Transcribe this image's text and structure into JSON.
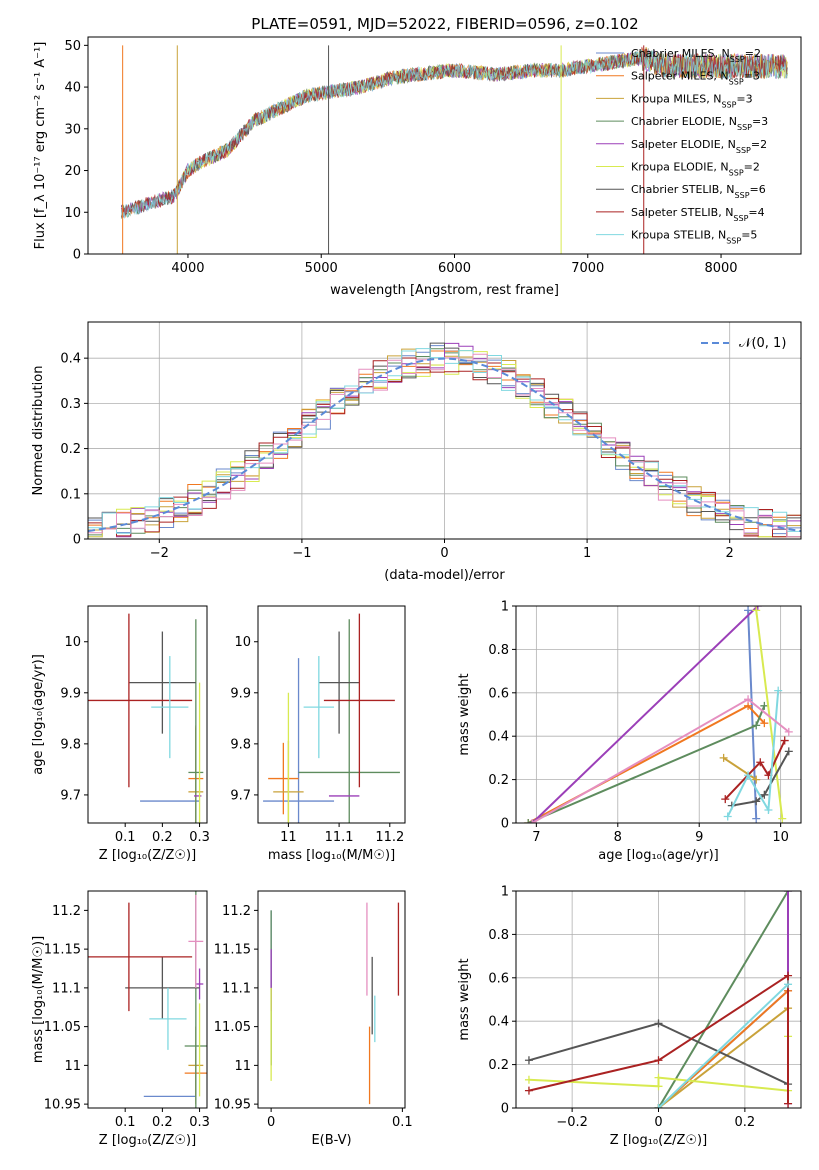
{
  "figure_title": "PLATE=0591, MJD=52022, FIBERID=0596, z=0.102",
  "series_colors": [
    "#6a89cc",
    "#f07820",
    "#c9a23a",
    "#5e8c5e",
    "#9b3fb8",
    "#d8ea50",
    "#555555",
    "#aa2222",
    "#80d8e0"
  ],
  "chart_data": [
    {
      "type": "line",
      "title": "PLATE=0591, MJD=52022, FIBERID=0596, z=0.102",
      "xlabel": "wavelength [Angstrom, rest frame]",
      "ylabel": "Flux [f_λ 10⁻¹⁷ erg cm⁻² s⁻¹ A⁻¹]",
      "xlim": [
        3250,
        8600
      ],
      "ylim": [
        0,
        52
      ],
      "xticks": [
        4000,
        5000,
        6000,
        7000,
        8000
      ],
      "yticks": [
        0,
        10,
        20,
        30,
        40,
        50
      ],
      "grid": false,
      "legend_position": "top-right",
      "series": [
        {
          "name": "Chabrier MILES, N_SSP=2"
        },
        {
          "name": "Salpeter MILES, N_SSP=3"
        },
        {
          "name": "Kroupa MILES, N_SSP=3"
        },
        {
          "name": "Chabrier ELODIE, N_SSP=3"
        },
        {
          "name": "Salpeter ELODIE, N_SSP=2"
        },
        {
          "name": "Kroupa ELODIE, N_SSP=2"
        },
        {
          "name": "Chabrier STELIB, N_SSP=6"
        },
        {
          "name": "Salpeter STELIB, N_SSP=4"
        },
        {
          "name": "Kroupa STELIB, N_SSP=5"
        }
      ],
      "continuum": {
        "x": [
          3500,
          3700,
          3900,
          4000,
          4100,
          4300,
          4500,
          4700,
          4900,
          5100,
          5300,
          5500,
          5700,
          6000,
          6300,
          6600,
          6800,
          7000,
          7200,
          7400,
          7600,
          7800,
          8000,
          8200,
          8500
        ],
        "y": [
          10,
          12,
          14,
          20,
          22,
          25,
          32,
          35,
          38,
          39,
          40,
          42,
          43,
          44,
          43,
          44,
          44,
          45,
          46,
          47,
          45,
          45,
          45,
          45,
          45
        ]
      }
    },
    {
      "type": "line",
      "xlabel": "(data-model)/error",
      "ylabel": "Normed distribution",
      "xlim": [
        -2.5,
        2.5
      ],
      "ylim": [
        0,
        0.48
      ],
      "xticks": [
        -2,
        -1,
        0,
        1,
        2
      ],
      "yticks": [
        0.0,
        0.1,
        0.2,
        0.3,
        0.4
      ],
      "grid": true,
      "legend_position": "top-right",
      "legend_gaussian": "𝒩(0, 1)",
      "bin_width": 0.1
    },
    {
      "type": "scatter",
      "xlabel": "Z [log₁₀(Z/Z☉)]",
      "ylabel": "age  [log₁₀(age/yr)]",
      "xlim": [
        0.0,
        0.32
      ],
      "ylim": [
        9.645,
        10.07
      ],
      "xticks": [
        0.1,
        0.2,
        0.3
      ],
      "yticks": [
        9.7,
        9.8,
        9.9,
        10.0
      ],
      "points": [
        {
          "series": 0,
          "x": 0.22,
          "y": 9.688,
          "xerr": 0.08,
          "yerr": 0.0
        },
        {
          "series": 1,
          "x": 0.29,
          "y": 9.732,
          "xerr": 0.02,
          "yerr": 0.1
        },
        {
          "series": 2,
          "x": 0.29,
          "y": 9.706,
          "xerr": 0.02,
          "yerr": 0.13
        },
        {
          "series": 3,
          "x": 0.29,
          "y": 9.744,
          "xerr": 0.02,
          "yerr": 0.3
        },
        {
          "series": 4,
          "x": 0.295,
          "y": 9.698,
          "xerr": 0.01,
          "yerr": 0.0
        },
        {
          "series": 5,
          "x": 0.3,
          "y": 9.77,
          "xerr": 0.0,
          "yerr": 0.15
        },
        {
          "series": 6,
          "x": 0.2,
          "y": 9.92,
          "xerr": 0.09,
          "yerr": 0.1
        },
        {
          "series": 7,
          "x": 0.11,
          "y": 9.885,
          "xerr": 0.17,
          "yerr": 0.17
        },
        {
          "series": 8,
          "x": 0.22,
          "y": 9.872,
          "xerr": 0.05,
          "yerr": 0.1
        }
      ]
    },
    {
      "type": "scatter",
      "xlabel": "mass [log₁₀(M/M☉)]",
      "ylabel": "",
      "xlim": [
        10.94,
        11.23
      ],
      "ylim": [
        9.645,
        10.07
      ],
      "xticks": [
        11.0,
        11.1,
        11.2
      ],
      "yticks": [
        9.7,
        9.8,
        9.9,
        10.0
      ],
      "points": [
        {
          "series": 0,
          "x": 11.02,
          "y": 9.688,
          "xerr": 0.07,
          "yerr": 0.28
        },
        {
          "series": 1,
          "x": 10.99,
          "y": 9.732,
          "xerr": 0.03,
          "yerr": 0.07
        },
        {
          "series": 2,
          "x": 11.0,
          "y": 9.706,
          "xerr": 0.03,
          "yerr": 0.1
        },
        {
          "series": 3,
          "x": 11.12,
          "y": 9.744,
          "xerr": 0.1,
          "yerr": 0.3
        },
        {
          "series": 4,
          "x": 11.11,
          "y": 9.698,
          "xerr": 0.03,
          "yerr": 0.0
        },
        {
          "series": 5,
          "x": 11.0,
          "y": 9.77,
          "xerr": 0.0,
          "yerr": 0.13
        },
        {
          "series": 6,
          "x": 11.1,
          "y": 9.92,
          "xerr": 0.04,
          "yerr": 0.1
        },
        {
          "series": 7,
          "x": 11.14,
          "y": 9.885,
          "xerr": 0.07,
          "yerr": 0.17
        },
        {
          "series": 8,
          "x": 11.06,
          "y": 9.872,
          "xerr": 0.03,
          "yerr": 0.1
        }
      ]
    },
    {
      "type": "line",
      "xlabel": "age  [log₁₀(age/yr)]",
      "ylabel": "mass weight",
      "xlim": [
        6.75,
        10.25
      ],
      "ylim": [
        0.0,
        1.0
      ],
      "xticks": [
        7,
        8,
        9,
        10
      ],
      "yticks": [
        0.0,
        0.2,
        0.4,
        0.6,
        0.8,
        1.0
      ],
      "grid": true,
      "series": [
        {
          "x": [
            9.6,
            9.7
          ],
          "y": [
            0.98,
            0.02
          ]
        },
        {
          "x": [
            6.9,
            9.6,
            9.8
          ],
          "y": [
            0.0,
            0.54,
            0.46
          ]
        },
        {
          "x": [
            9.3,
            9.7
          ],
          "y": [
            0.3,
            0.2
          ]
        },
        {
          "x": [
            6.9,
            9.7,
            9.8
          ],
          "y": [
            0.0,
            0.45,
            0.54
          ]
        },
        {
          "x": [
            6.95,
            9.72
          ],
          "y": [
            0.0,
            1.0
          ]
        },
        {
          "x": [
            9.7,
            10.02
          ],
          "y": [
            0.98,
            0.02
          ]
        },
        {
          "x": [
            9.4,
            9.7,
            9.8,
            10.1
          ],
          "y": [
            0.08,
            0.1,
            0.13,
            0.33
          ]
        },
        {
          "x": [
            9.32,
            9.75,
            9.85,
            10.05
          ],
          "y": [
            0.11,
            0.28,
            0.22,
            0.38
          ]
        },
        {
          "x": [
            9.35,
            9.6,
            9.85,
            9.97
          ],
          "y": [
            0.03,
            0.22,
            0.06,
            0.61
          ]
        },
        {
          "x": [
            6.95,
            9.6,
            10.1
          ],
          "y": [
            0.0,
            0.57,
            0.42
          ]
        }
      ]
    },
    {
      "type": "scatter",
      "xlabel": "Z [log₁₀(Z/Z☉)]",
      "ylabel": "mass [log₁₀(M/M☉)]",
      "xlim": [
        0.0,
        0.32
      ],
      "ylim": [
        10.945,
        11.225
      ],
      "xticks": [
        0.1,
        0.2,
        0.3
      ],
      "yticks": [
        10.95,
        11.0,
        11.05,
        11.1,
        11.15,
        11.2
      ],
      "points": [
        {
          "series": 0,
          "x": 0.22,
          "y": 10.96,
          "xerr": 0.07,
          "yerr": 0.0
        },
        {
          "series": 1,
          "x": 0.29,
          "y": 10.99,
          "xerr": 0.03,
          "yerr": 0.03
        },
        {
          "series": 2,
          "x": 0.29,
          "y": 11.0,
          "xerr": 0.02,
          "yerr": 0.05
        },
        {
          "series": 3,
          "x": 0.29,
          "y": 11.025,
          "xerr": 0.03,
          "yerr": 0.2
        },
        {
          "series": 4,
          "x": 0.3,
          "y": 11.105,
          "xerr": 0.01,
          "yerr": 0.02
        },
        {
          "series": 5,
          "x": 0.3,
          "y": 11.02,
          "xerr": 0.0,
          "yerr": 0.06
        },
        {
          "series": 6,
          "x": 0.2,
          "y": 11.1,
          "xerr": 0.1,
          "yerr": 0.04
        },
        {
          "series": 7,
          "x": 0.11,
          "y": 11.14,
          "xerr": 0.17,
          "yerr": 0.07
        },
        {
          "series": 8,
          "x": 0.215,
          "y": 11.06,
          "xerr": 0.05,
          "yerr": 0.04
        },
        {
          "series": 9,
          "x": 0.29,
          "y": 11.16,
          "xerr": 0.02,
          "yerr": 0.06
        }
      ]
    },
    {
      "type": "scatter",
      "xlabel": "E(B-V)",
      "ylabel": "",
      "xlim": [
        -0.01,
        0.102
      ],
      "ylim": [
        10.945,
        11.225
      ],
      "xticks": [
        0.0,
        0.1
      ],
      "yticks": [
        10.95,
        11.0,
        11.05,
        11.1,
        11.15,
        11.2
      ],
      "points": [
        {
          "series": 0,
          "x": 0.0,
          "y": 11.1,
          "xerr": 0.0,
          "yerr": 0.1
        },
        {
          "series": 1,
          "x": 0.075,
          "y": 11.0,
          "xerr": 0.0,
          "yerr": 0.05
        },
        {
          "series": 3,
          "x": 0.0,
          "y": 11.1,
          "xerr": 0.0,
          "yerr": 0.1
        },
        {
          "series": 4,
          "x": 0.0,
          "y": 11.11,
          "xerr": 0.0,
          "yerr": 0.04
        },
        {
          "series": 5,
          "x": 0.0,
          "y": 11.04,
          "xerr": 0.0,
          "yerr": 0.06
        },
        {
          "series": 6,
          "x": 0.077,
          "y": 11.09,
          "xerr": 0.0,
          "yerr": 0.05
        },
        {
          "series": 7,
          "x": 0.097,
          "y": 11.15,
          "xerr": 0.0,
          "yerr": 0.06
        },
        {
          "series": 8,
          "x": 0.079,
          "y": 11.06,
          "xerr": 0.0,
          "yerr": 0.03
        },
        {
          "series": 9,
          "x": 0.073,
          "y": 11.15,
          "xerr": 0.0,
          "yerr": 0.06
        }
      ]
    },
    {
      "type": "line",
      "xlabel": "Z [log₁₀(Z/Z☉)]",
      "ylabel": "mass weight",
      "xlim": [
        -0.33,
        0.33
      ],
      "ylim": [
        0.0,
        1.0
      ],
      "xticks": [
        -0.2,
        0.0,
        0.2
      ],
      "yticks": [
        0.0,
        0.2,
        0.4,
        0.6,
        0.8,
        1.0
      ],
      "grid": true,
      "series": [
        {
          "x": [
            0.0,
            0.3
          ],
          "y": [
            0.0,
            0.54
          ]
        },
        {
          "x": [
            0.0,
            0.3
          ],
          "y": [
            0.0,
            0.54
          ]
        },
        {
          "x": [
            0.0,
            0.3
          ],
          "y": [
            0.0,
            0.46
          ]
        },
        {
          "x": [
            0.0,
            0.3
          ],
          "y": [
            0.0,
            1.0
          ]
        },
        {
          "x": [
            0.3,
            0.3
          ],
          "y": [
            0.02,
            1.0
          ]
        },
        {
          "x": [
            -0.3,
            0.0,
            0.0,
            0.3,
            0.3
          ],
          "y": [
            0.13,
            0.1,
            0.14,
            0.08,
            0.33
          ]
        },
        {
          "x": [
            -0.3,
            0.0,
            0.3
          ],
          "y": [
            0.22,
            0.39,
            0.11
          ]
        },
        {
          "x": [
            -0.3,
            0.0,
            0.3,
            0.3
          ],
          "y": [
            0.08,
            0.22,
            0.61,
            0.02
          ]
        },
        {
          "x": [
            0.0,
            0.3
          ],
          "y": [
            0.0,
            0.57
          ]
        }
      ]
    }
  ]
}
